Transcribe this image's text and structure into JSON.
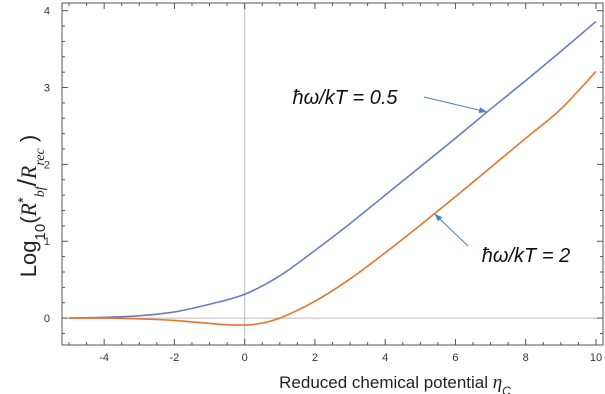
{
  "chart_data": {
    "type": "line",
    "title": "",
    "xlabel": "Reduced chemical potential η_C",
    "ylabel": "Log10(R*bf/Rrec)",
    "xlim": [
      -5.2,
      10.2
    ],
    "ylim": [
      -0.35,
      4.1
    ],
    "x_ticks": [
      -4,
      -2,
      0,
      2,
      4,
      6,
      8,
      10
    ],
    "y_ticks": [
      0,
      1,
      2,
      3,
      4
    ],
    "x_tick_labels": [
      "-4",
      "-2",
      "0",
      "2",
      "4",
      "6",
      "8",
      "10"
    ],
    "y_tick_labels": [
      "0",
      "1",
      "2",
      "3",
      "4"
    ],
    "grid": false,
    "axis_lines_at_zero": true,
    "series": [
      {
        "name": "ħω/kT = 0.5",
        "color": "#6b7cc4",
        "x": [
          -5,
          -4,
          -3,
          -2,
          -1,
          0,
          1,
          2,
          3,
          4,
          5,
          6,
          7,
          8,
          9,
          10
        ],
        "y": [
          0.0,
          0.01,
          0.03,
          0.08,
          0.18,
          0.31,
          0.55,
          0.88,
          1.23,
          1.6,
          1.97,
          2.34,
          2.72,
          3.09,
          3.47,
          3.86
        ]
      },
      {
        "name": "ħω/kT = 2",
        "color": "#e8732c",
        "x": [
          -5,
          -4,
          -3,
          -2,
          -1,
          -0.3,
          0.3,
          1,
          2,
          3,
          4,
          5,
          6,
          7,
          8,
          9,
          10
        ],
        "y": [
          0.0,
          0.0,
          -0.01,
          -0.03,
          -0.07,
          -0.09,
          -0.08,
          0.0,
          0.22,
          0.51,
          0.85,
          1.21,
          1.58,
          1.96,
          2.34,
          2.72,
          3.21
        ]
      }
    ],
    "annotations": [
      {
        "text": "ħω/kT = 0.5",
        "series": 0,
        "points_to_x": 6.9
      },
      {
        "text": "ħω/kT = 2",
        "series": 1,
        "points_to_x": 5.4
      }
    ]
  }
}
